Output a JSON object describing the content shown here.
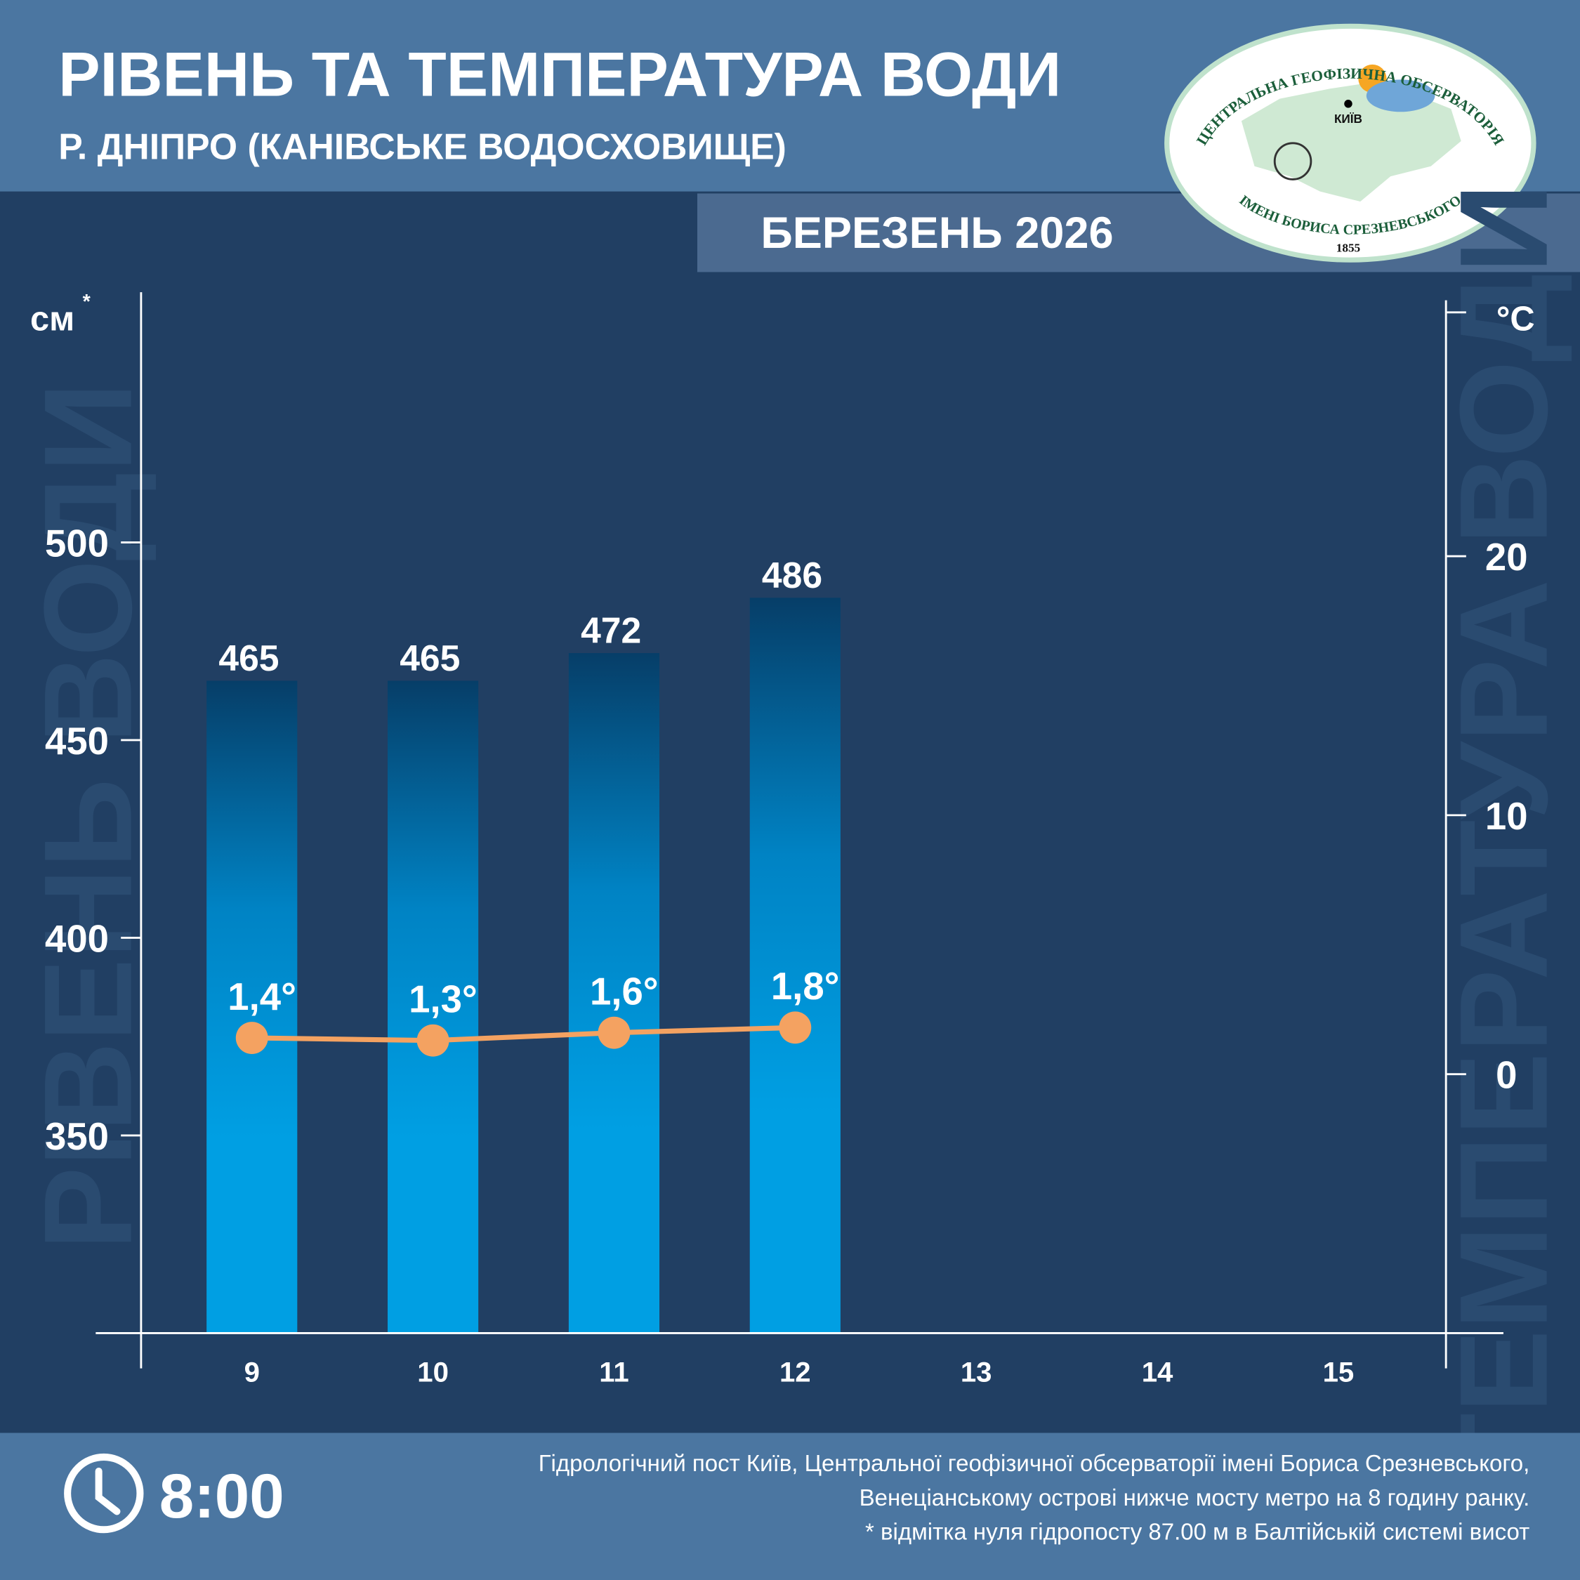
{
  "chart_data": {
    "type": "bar-line",
    "title": "РІВЕНЬ ТА ТЕМПЕРАТУРА ВОДИ",
    "subtitle": "Р. ДНІПРО (КАНІВСЬКЕ ВОДОСХОВИЩЕ)",
    "period": "БЕРЕЗЕНЬ 2026",
    "y_label": "РІВЕНЬ ВОДИ",
    "y_unit": "см",
    "y_unit_mark": "*",
    "y2_label": "ТЕМПЕРАТУРА ВОДИ",
    "y2_unit": "°C",
    "categories": [
      "9",
      "10",
      "11",
      "12",
      "13",
      "14",
      "15"
    ],
    "series": [
      {
        "type": "bar",
        "color": "#009fe3",
        "values": [
          465,
          465,
          472,
          486,
          null,
          null,
          null
        ]
      },
      {
        "type": "line",
        "axis": "y2",
        "color": "#f4a261",
        "values": [
          1.4,
          1.3,
          1.6,
          1.8,
          null,
          null,
          null
        ],
        "value_labels": [
          "1,4°",
          "1,3°",
          "1,6°",
          "1,8°",
          null,
          null,
          null
        ]
      }
    ],
    "ylim": [
      300,
      562
    ],
    "yticks": [
      350,
      400,
      450,
      500
    ],
    "y2lim": [
      -10,
      30
    ],
    "y2ticks": [
      0,
      10,
      20
    ],
    "grid": false
  },
  "logo": {
    "top": "ЦЕНТРАЛЬНА ГЕОФІЗИЧНА ОБСЕРВАТОРІЯ",
    "city": "КИЇВ",
    "bottom": "ІМЕНІ БОРИСА СРЕЗНЕВСЬКОГО",
    "year": "1855"
  },
  "footer": {
    "time": "8:00",
    "notes": [
      "Гідрологічний пост Київ, Центральної геофізичної обсерваторії імені Бориса Срезневського,",
      "Венеціанському острові нижче мосту метро  на 8 годину ранку.",
      "* відмітка нуля гідропосту 87.00 м в Балтійській системі висот"
    ]
  }
}
